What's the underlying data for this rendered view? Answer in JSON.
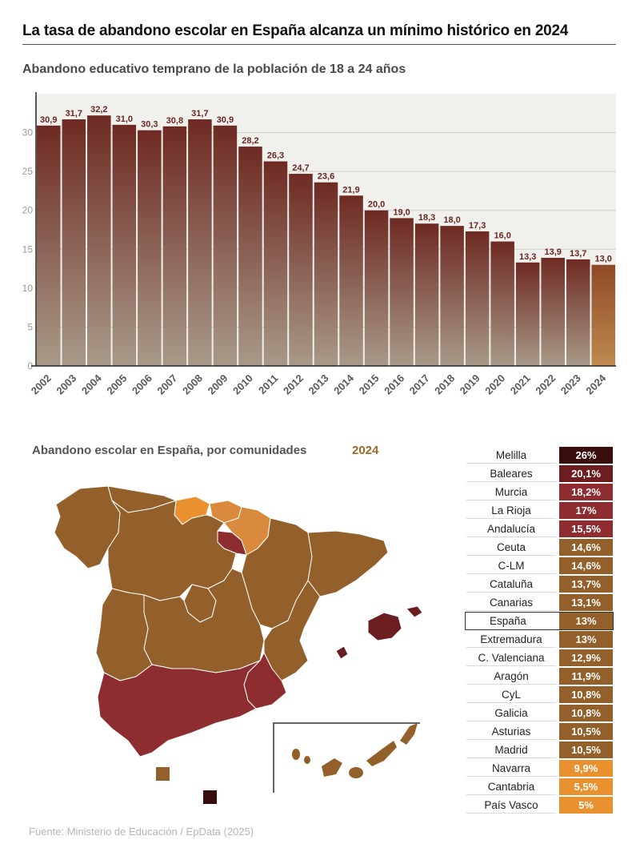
{
  "title": "La tasa de abandono escolar en España alcanza un mínimo histórico en 2024",
  "chart_subtitle": "Abandono educativo temprano de la población de 18 a 24 años",
  "chart_data": {
    "type": "bar",
    "categories": [
      "2002",
      "2003",
      "2004",
      "2005",
      "2006",
      "2007",
      "2008",
      "2009",
      "2010",
      "2011",
      "2012",
      "2013",
      "2014",
      "2015",
      "2016",
      "2017",
      "2018",
      "2019",
      "2020",
      "2021",
      "2022",
      "2023",
      "2024"
    ],
    "values": [
      30.9,
      31.7,
      32.2,
      31.0,
      30.3,
      30.8,
      31.7,
      30.9,
      28.2,
      26.3,
      24.7,
      23.6,
      21.9,
      20.0,
      19.0,
      18.3,
      18.0,
      17.3,
      16.0,
      13.3,
      13.9,
      13.7,
      13.0
    ],
    "value_labels": [
      "30,9",
      "31,7",
      "32,2",
      "31,0",
      "30,3",
      "30,8",
      "31,7",
      "30,9",
      "28,2",
      "26,3",
      "24,7",
      "23,6",
      "21,9",
      "20,0",
      "19,0",
      "18,3",
      "18,0",
      "17,3",
      "16,0",
      "13,3",
      "13,9",
      "13,7",
      "13,0"
    ],
    "yticks": [
      "0",
      "5",
      "10",
      "15",
      "20",
      "25",
      "30"
    ],
    "ylim": [
      0,
      35
    ],
    "grid": true,
    "colors": {
      "bar_top": "#6e2a22",
      "bar_bottom": "#a89a88",
      "highlight_top": "#8e4a26",
      "highlight_bottom": "#c08a50",
      "plot_bg": "#f0f0ec"
    }
  },
  "map_section": {
    "title": "Abandono escolar en España, por comunidades",
    "year": "2024",
    "colors": {
      "base": "#93602b",
      "high": "#8e2d2f",
      "low": "#e8912e",
      "mid": "#d98a3d",
      "max": "#3a0d0d"
    }
  },
  "region_table": [
    {
      "name": "Melilla",
      "value": "26%",
      "color": "#3a0d0d"
    },
    {
      "name": "Baleares",
      "value": "20,1%",
      "color": "#6b1d1f"
    },
    {
      "name": "Murcia",
      "value": "18,2%",
      "color": "#8e2d2f"
    },
    {
      "name": "La Rioja",
      "value": "17%",
      "color": "#8e2d2f"
    },
    {
      "name": "Andalucía",
      "value": "15,5%",
      "color": "#8e2d2f"
    },
    {
      "name": "Ceuta",
      "value": "14,6%",
      "color": "#93602b"
    },
    {
      "name": "C-LM",
      "value": "14,6%",
      "color": "#93602b"
    },
    {
      "name": "Cataluña",
      "value": "13,7%",
      "color": "#93602b"
    },
    {
      "name": "Canarias",
      "value": "13,1%",
      "color": "#93602b"
    },
    {
      "name": "España",
      "value": "13%",
      "color": "#93602b",
      "highlight": true
    },
    {
      "name": "Extremadura",
      "value": "13%",
      "color": "#93602b"
    },
    {
      "name": "C. Valenciana",
      "value": "12,9%",
      "color": "#93602b"
    },
    {
      "name": "Aragón",
      "value": "11,9%",
      "color": "#93602b"
    },
    {
      "name": "CyL",
      "value": "10,8%",
      "color": "#93602b"
    },
    {
      "name": "Galicia",
      "value": "10,8%",
      "color": "#93602b"
    },
    {
      "name": "Asturias",
      "value": "10,5%",
      "color": "#93602b"
    },
    {
      "name": "Madrid",
      "value": "10,5%",
      "color": "#93602b"
    },
    {
      "name": "Navarra",
      "value": "9,9%",
      "color": "#e8912e"
    },
    {
      "name": "Cantabria",
      "value": "5,5%",
      "color": "#e8912e"
    },
    {
      "name": "País Vasco",
      "value": "5%",
      "color": "#e8912e"
    }
  ],
  "source": "Fuente: Ministerio de Educación / EpData (2025)"
}
